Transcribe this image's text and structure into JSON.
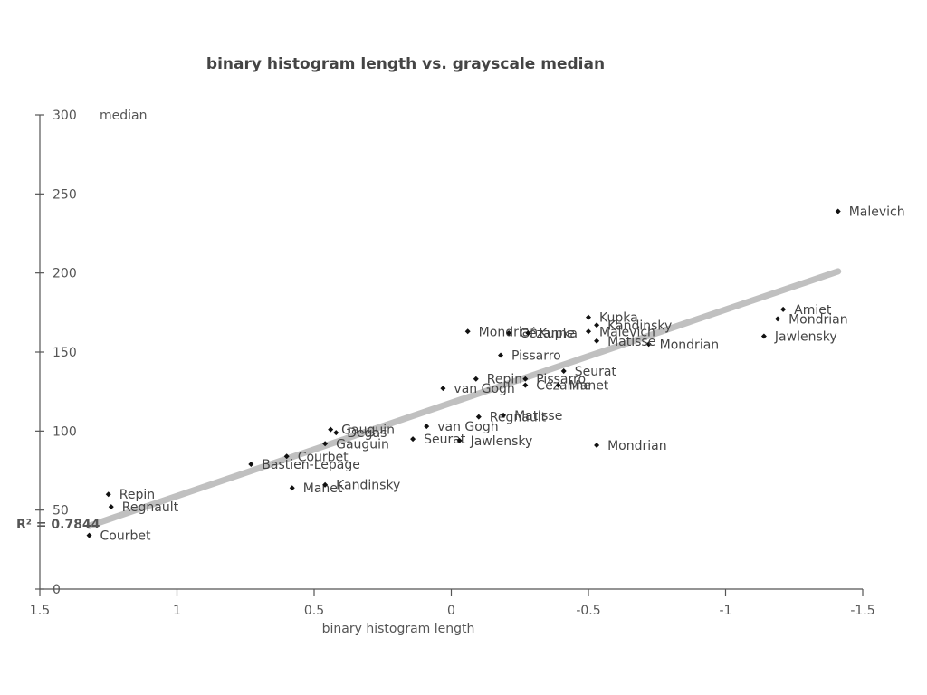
{
  "chart_data": {
    "type": "scatter",
    "title": "binary histogram length vs. grayscale median",
    "xlabel": "binary histogram length",
    "ylabel": "median",
    "x_reversed": true,
    "xlim": [
      1.5,
      -1.5
    ],
    "ylim": [
      0,
      300
    ],
    "x_ticks": [
      1.5,
      1,
      0.5,
      0,
      -0.5,
      -1,
      -1.5
    ],
    "x_tick_labels": [
      "1.5",
      "1",
      "0.5",
      "0",
      "-0.5",
      "-1",
      "-1.5"
    ],
    "y_ticks": [
      0,
      50,
      100,
      150,
      200,
      250,
      300
    ],
    "y_tick_labels": [
      "0",
      "50",
      "100",
      "150",
      "200",
      "250",
      "300"
    ],
    "grid": false,
    "legend": "none",
    "trendline": {
      "x": [
        1.32,
        -1.41
      ],
      "y": [
        40,
        201
      ],
      "r2_label": "R² = 0.7844"
    },
    "points": [
      {
        "label": "Malevich",
        "x": -1.41,
        "y": 239
      },
      {
        "label": "Amiet",
        "x": -1.21,
        "y": 177
      },
      {
        "label": "Mondrian",
        "x": -1.19,
        "y": 171
      },
      {
        "label": "Jawlensky",
        "x": -1.14,
        "y": 160
      },
      {
        "label": "Mondrian",
        "x": -0.72,
        "y": 155
      },
      {
        "label": "Kupka",
        "x": -0.5,
        "y": 172
      },
      {
        "label": "Kandinsky",
        "x": -0.53,
        "y": 167
      },
      {
        "label": "Malevich",
        "x": -0.5,
        "y": 163
      },
      {
        "label": "Matisse",
        "x": -0.53,
        "y": 157
      },
      {
        "label": "Mondrian",
        "x": -0.06,
        "y": 163
      },
      {
        "label": "Cézanne",
        "x": -0.21,
        "y": 162
      },
      {
        "label": "Kupka",
        "x": -0.28,
        "y": 162
      },
      {
        "label": "Pissarro",
        "x": -0.18,
        "y": 148
      },
      {
        "label": "Seurat",
        "x": -0.41,
        "y": 138
      },
      {
        "label": "Repin",
        "x": -0.09,
        "y": 133
      },
      {
        "label": "Pissarro",
        "x": -0.27,
        "y": 133
      },
      {
        "label": "Cézanne",
        "x": -0.27,
        "y": 129
      },
      {
        "label": "Manet",
        "x": -0.39,
        "y": 129
      },
      {
        "label": "van Gogh",
        "x": 0.03,
        "y": 127
      },
      {
        "label": "Regnault",
        "x": -0.1,
        "y": 109
      },
      {
        "label": "Matisse",
        "x": -0.19,
        "y": 110
      },
      {
        "label": "van Gogh",
        "x": 0.09,
        "y": 103
      },
      {
        "label": "Seurat",
        "x": 0.14,
        "y": 95
      },
      {
        "label": "Jawlensky",
        "x": -0.03,
        "y": 94
      },
      {
        "label": "Mondrian",
        "x": -0.53,
        "y": 91
      },
      {
        "label": "Gauguin",
        "x": 0.44,
        "y": 101
      },
      {
        "label": "Degas",
        "x": 0.42,
        "y": 99
      },
      {
        "label": "Gauguin",
        "x": 0.46,
        "y": 92
      },
      {
        "label": "Courbet",
        "x": 0.6,
        "y": 84
      },
      {
        "label": "Bastien-Lepage",
        "x": 0.73,
        "y": 79
      },
      {
        "label": "Manet",
        "x": 0.58,
        "y": 64
      },
      {
        "label": "Kandinsky",
        "x": 0.46,
        "y": 66
      },
      {
        "label": "Repin",
        "x": 1.25,
        "y": 60
      },
      {
        "label": "Regnault",
        "x": 1.24,
        "y": 52
      },
      {
        "label": "Courbet",
        "x": 1.32,
        "y": 34
      }
    ]
  }
}
